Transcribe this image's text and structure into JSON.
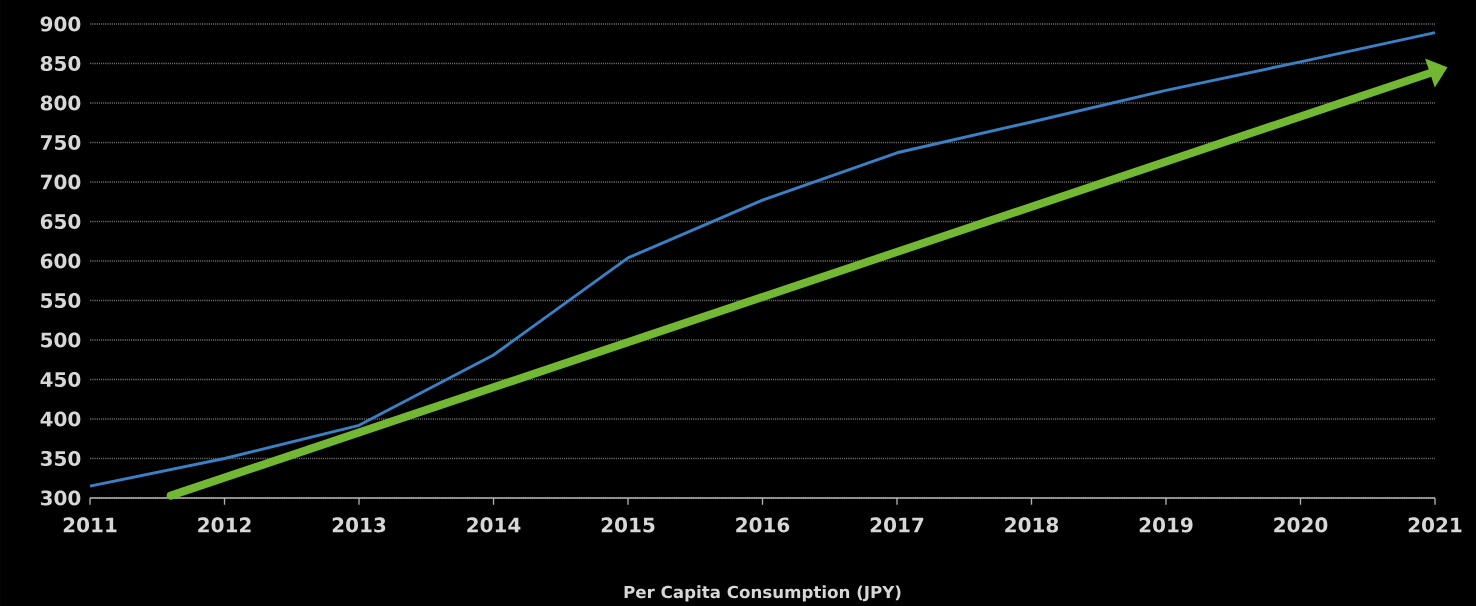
{
  "chart_data": {
    "type": "line",
    "xlabel": "Per Capita Consumption (JPY)",
    "x": [
      2011,
      2012,
      2013,
      2014,
      2015,
      2016,
      2017,
      2018,
      2019,
      2020,
      2021
    ],
    "series": [
      {
        "color": "#3a80c4",
        "values": [
          315,
          350,
          392,
          481,
          604,
          677,
          737,
          776,
          816,
          852,
          889
        ]
      },
      {
        "type": "line",
        "color": "#72b833",
        "x": [
          2011.6,
          2021
        ],
        "values": [
          303,
          840
        ]
      }
    ],
    "xlim": [
      2011,
      2021
    ],
    "xticks": [
      2011,
      2012,
      2013,
      2014,
      2015,
      2016,
      2017,
      2018,
      2019,
      2020,
      2021
    ],
    "ylim": [
      300,
      900
    ],
    "yticks": [
      300,
      350,
      400,
      450,
      500,
      550,
      600,
      650,
      700,
      750,
      800,
      850,
      900
    ],
    "grid": "y",
    "line_style": "solid"
  }
}
